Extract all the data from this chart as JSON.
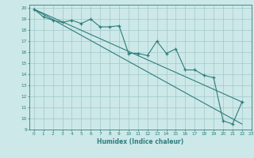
{
  "xlabel": "Humidex (Indice chaleur)",
  "xlim": [
    -0.5,
    23
  ],
  "ylim": [
    9,
    20.3
  ],
  "xticks": [
    0,
    1,
    2,
    3,
    4,
    5,
    6,
    7,
    8,
    9,
    10,
    11,
    12,
    13,
    14,
    15,
    16,
    17,
    18,
    19,
    20,
    21,
    22,
    23
  ],
  "yticks": [
    9,
    10,
    11,
    12,
    13,
    14,
    15,
    16,
    17,
    18,
    19,
    20
  ],
  "bg_color": "#cde8e8",
  "grid_color": "#a0c8c8",
  "line_color": "#2e7d7d",
  "line1_x": [
    0,
    1,
    2,
    3,
    4,
    5,
    6,
    7,
    8,
    9,
    10,
    11,
    12,
    13,
    14,
    15,
    16,
    17,
    18,
    19,
    20,
    21,
    22
  ],
  "line1_y": [
    19.9,
    19.2,
    18.9,
    18.7,
    18.9,
    18.6,
    19.0,
    18.3,
    18.3,
    18.4,
    15.9,
    15.9,
    15.7,
    17.0,
    15.9,
    16.3,
    14.4,
    14.4,
    13.9,
    13.7,
    9.8,
    9.5,
    11.5
  ],
  "line2_x": [
    0,
    22
  ],
  "line2_y": [
    19.9,
    11.5
  ],
  "line3_x": [
    0,
    22
  ],
  "line3_y": [
    19.9,
    9.5
  ]
}
